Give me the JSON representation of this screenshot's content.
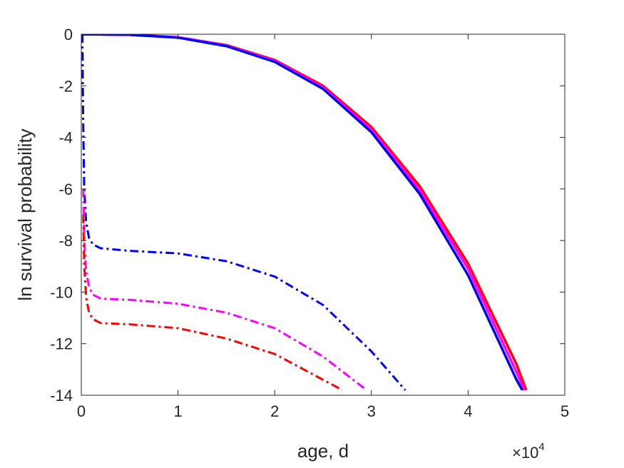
{
  "chart_data": {
    "type": "line",
    "title": "",
    "xlabel": "age, d",
    "ylabel": "ln survival probability",
    "x_exponent_base": "×10",
    "x_exponent_power": "4",
    "xlim": [
      0,
      5
    ],
    "ylim": [
      -14,
      0
    ],
    "x_ticks": [
      "0",
      "1",
      "2",
      "3",
      "4",
      "5"
    ],
    "y_ticks": [
      "0",
      "-2",
      "-4",
      "-6",
      "-8",
      "-10",
      "-12",
      "-14"
    ],
    "x_tick_values": [
      0,
      1,
      2,
      3,
      4,
      5
    ],
    "y_tick_values": [
      0,
      -2,
      -4,
      -6,
      -8,
      -10,
      -12,
      -14
    ],
    "grid": false,
    "legend": "none",
    "series": [
      {
        "color": "#ff0000",
        "style": "solid",
        "width": 3.5,
        "x": [
          0,
          0.5,
          1.0,
          1.5,
          2.0,
          2.5,
          3.0,
          3.5,
          4.0,
          4.5,
          4.6
        ],
        "y": [
          0,
          -0.02,
          -0.12,
          -0.42,
          -1.0,
          -2.0,
          -3.6,
          -5.9,
          -8.9,
          -12.8,
          -13.8
        ]
      },
      {
        "color": "#ff00ff",
        "style": "solid",
        "width": 3.5,
        "x": [
          0,
          0.5,
          1.0,
          1.5,
          2.0,
          2.5,
          3.0,
          3.5,
          4.0,
          4.5,
          4.58
        ],
        "y": [
          0,
          -0.02,
          -0.12,
          -0.44,
          -1.03,
          -2.06,
          -3.7,
          -6.05,
          -9.1,
          -13.1,
          -13.8
        ]
      },
      {
        "color": "#0000ff",
        "style": "solid",
        "width": 3.5,
        "x": [
          0,
          0.5,
          1.0,
          1.5,
          2.0,
          2.5,
          3.0,
          3.5,
          4.0,
          4.5,
          4.56
        ],
        "y": [
          0,
          -0.02,
          -0.13,
          -0.46,
          -1.07,
          -2.12,
          -3.8,
          -6.2,
          -9.35,
          -13.4,
          -13.8
        ]
      },
      {
        "color": "#0000ff",
        "style": "dashdot",
        "width": 3,
        "x": [
          0.01,
          0.02,
          0.03,
          0.05,
          0.08,
          0.12,
          0.2,
          0.5,
          1.0,
          1.5,
          2.0,
          2.5,
          3.0,
          3.35
        ],
        "y": [
          0,
          -3.5,
          -6.0,
          -7.3,
          -7.9,
          -8.15,
          -8.3,
          -8.4,
          -8.5,
          -8.8,
          -9.4,
          -10.5,
          -12.3,
          -13.8
        ]
      },
      {
        "color": "#ff00ff",
        "style": "dashdot",
        "width": 3,
        "x": [
          0.02,
          0.03,
          0.05,
          0.08,
          0.12,
          0.2,
          0.5,
          1.0,
          1.5,
          2.0,
          2.5,
          2.95
        ],
        "y": [
          -6.0,
          -8.0,
          -9.2,
          -9.8,
          -10.1,
          -10.25,
          -10.3,
          -10.45,
          -10.8,
          -11.4,
          -12.5,
          -13.8
        ]
      },
      {
        "color": "#ff0000",
        "style": "dashdot",
        "width": 3,
        "x": [
          0.02,
          0.03,
          0.05,
          0.08,
          0.12,
          0.2,
          0.5,
          1.0,
          1.5,
          2.0,
          2.5,
          2.7
        ],
        "y": [
          -7.0,
          -9.0,
          -10.2,
          -10.8,
          -11.05,
          -11.2,
          -11.25,
          -11.4,
          -11.8,
          -12.4,
          -13.4,
          -13.8
        ]
      }
    ]
  }
}
